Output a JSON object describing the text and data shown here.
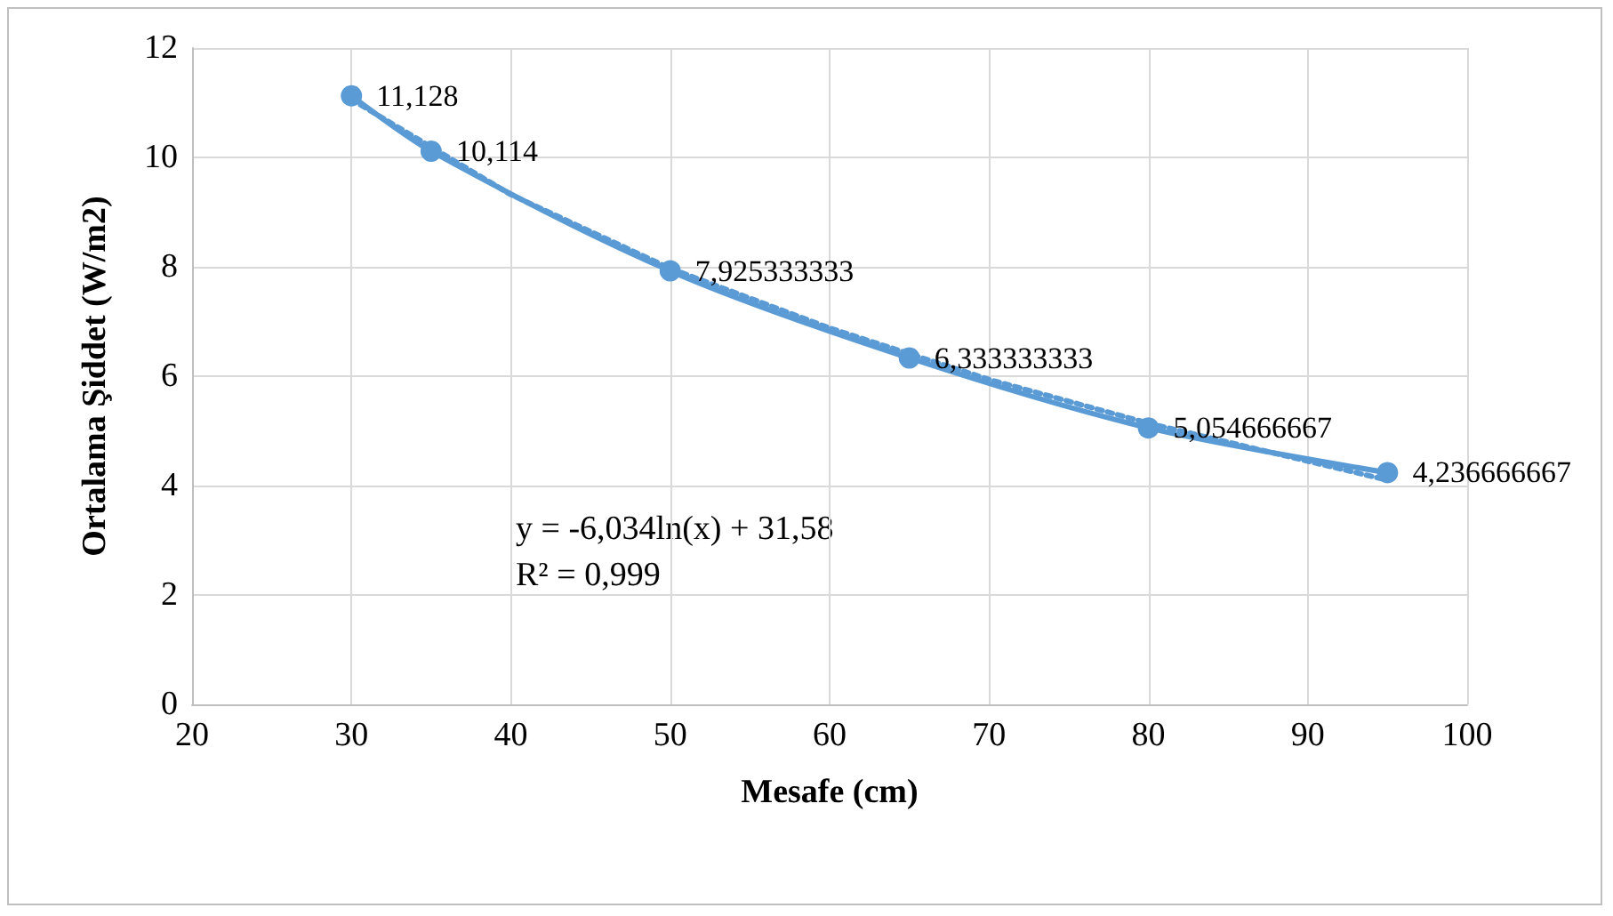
{
  "chart_data": {
    "type": "line",
    "xlabel": "Mesafe (cm)",
    "ylabel": "Ortalama Şiddet (W/m2)",
    "xlim": [
      20,
      100
    ],
    "xticks": [
      20,
      30,
      40,
      50,
      60,
      70,
      80,
      90,
      100
    ],
    "ylim": [
      0,
      12
    ],
    "yticks": [
      0,
      2,
      4,
      6,
      8,
      10,
      12
    ],
    "grid": true,
    "series": [
      {
        "color": "#5b9bd5",
        "marker": "circle",
        "line_style": "solid",
        "x": [
          30,
          35,
          50,
          65,
          80,
          95
        ],
        "values": [
          11.128,
          10.114,
          7.925333333,
          6.333333333,
          5.054666667,
          4.236666667
        ],
        "value_labels": [
          "11,128",
          "10,114",
          "7,925333333",
          "6,333333333",
          "5,054666667",
          "4,236666667"
        ]
      },
      {
        "color": "#5b9bd5",
        "marker": "none",
        "line_style": "dotted",
        "x": [
          30,
          40,
          50,
          60,
          70,
          80,
          95
        ],
        "values": [
          11.06,
          9.32,
          7.97,
          6.88,
          5.94,
          5.14,
          4.1
        ]
      }
    ],
    "annotations": [
      "y = -6,034ln(x) + 31,58",
      "R² = 0,999"
    ]
  }
}
